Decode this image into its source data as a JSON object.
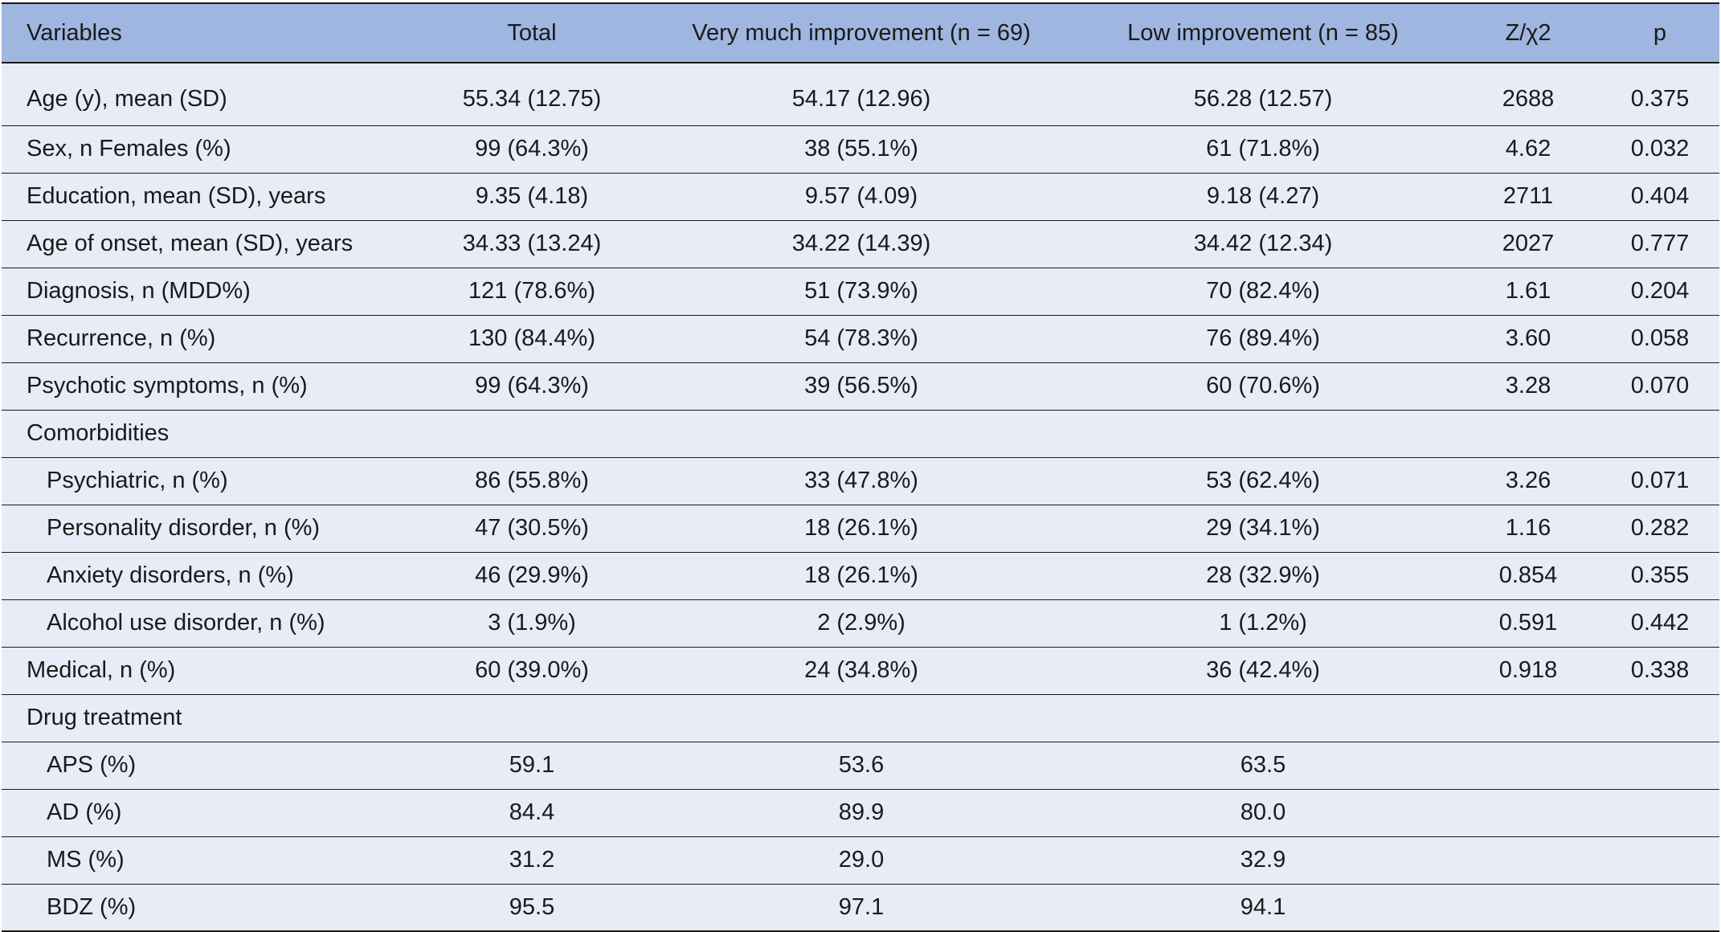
{
  "table": {
    "headers": [
      "Variables",
      "Total",
      "Very much improvement (n = 69)",
      "Low improvement (n = 85)",
      "Z/χ2",
      "p"
    ],
    "rows": [
      {
        "label": "Age (y), mean (SD)",
        "indent": false,
        "cells": [
          "55.34 (12.75)",
          "54.17 (12.96)",
          "56.28 (12.57)",
          "2688",
          "0.375"
        ]
      },
      {
        "label": "Sex, n Females (%)",
        "indent": false,
        "cells": [
          "99 (64.3%)",
          "38 (55.1%)",
          "61 (71.8%)",
          "4.62",
          "0.032"
        ]
      },
      {
        "label": "Education, mean (SD), years",
        "indent": false,
        "cells": [
          "9.35 (4.18)",
          "9.57 (4.09)",
          "9.18 (4.27)",
          "2711",
          "0.404"
        ]
      },
      {
        "label": "Age of onset, mean (SD), years",
        "indent": false,
        "cells": [
          "34.33 (13.24)",
          "34.22 (14.39)",
          "34.42 (12.34)",
          "2027",
          "0.777"
        ]
      },
      {
        "label": "Diagnosis, n (MDD%)",
        "indent": false,
        "cells": [
          "121 (78.6%)",
          "51 (73.9%)",
          "70 (82.4%)",
          "1.61",
          "0.204"
        ]
      },
      {
        "label": "Recurrence, n (%)",
        "indent": false,
        "cells": [
          "130 (84.4%)",
          "54 (78.3%)",
          "76 (89.4%)",
          "3.60",
          "0.058"
        ]
      },
      {
        "label": "Psychotic symptoms, n (%)",
        "indent": false,
        "cells": [
          "99 (64.3%)",
          "39 (56.5%)",
          "60 (70.6%)",
          "3.28",
          "0.070"
        ]
      },
      {
        "label": "Comorbidities",
        "indent": false,
        "cells": [
          "",
          "",
          "",
          "",
          ""
        ]
      },
      {
        "label": "Psychiatric, n (%)",
        "indent": true,
        "cells": [
          "86 (55.8%)",
          "33 (47.8%)",
          "53 (62.4%)",
          "3.26",
          "0.071"
        ]
      },
      {
        "label": "Personality disorder, n (%)",
        "indent": true,
        "cells": [
          "47 (30.5%)",
          "18 (26.1%)",
          "29 (34.1%)",
          "1.16",
          "0.282"
        ]
      },
      {
        "label": "Anxiety disorders, n (%)",
        "indent": true,
        "cells": [
          "46 (29.9%)",
          "18 (26.1%)",
          "28 (32.9%)",
          "0.854",
          "0.355"
        ]
      },
      {
        "label": "Alcohol use disorder, n (%)",
        "indent": true,
        "cells": [
          "3 (1.9%)",
          "2 (2.9%)",
          "1 (1.2%)",
          "0.591",
          "0.442"
        ]
      },
      {
        "label": "Medical, n (%)",
        "indent": false,
        "cells": [
          "60 (39.0%)",
          "24 (34.8%)",
          "36 (42.4%)",
          "0.918",
          "0.338"
        ]
      },
      {
        "label": "Drug treatment",
        "indent": false,
        "cells": [
          "",
          "",
          "",
          "",
          ""
        ]
      },
      {
        "label": "APS (%)",
        "indent": true,
        "cells": [
          "59.1",
          "53.6",
          "63.5",
          "",
          ""
        ]
      },
      {
        "label": "AD (%)",
        "indent": true,
        "cells": [
          "84.4",
          "89.9",
          "80.0",
          "",
          ""
        ]
      },
      {
        "label": "MS (%)",
        "indent": true,
        "cells": [
          "31.2",
          "29.0",
          "32.9",
          "",
          ""
        ]
      },
      {
        "label": "BDZ (%)",
        "indent": true,
        "cells": [
          "95.5",
          "97.1",
          "94.1",
          "",
          ""
        ]
      }
    ]
  },
  "colors": {
    "header_background": "#9fb6e0",
    "row_background": "#e7ecf7",
    "rule": "#1a1a1a"
  }
}
